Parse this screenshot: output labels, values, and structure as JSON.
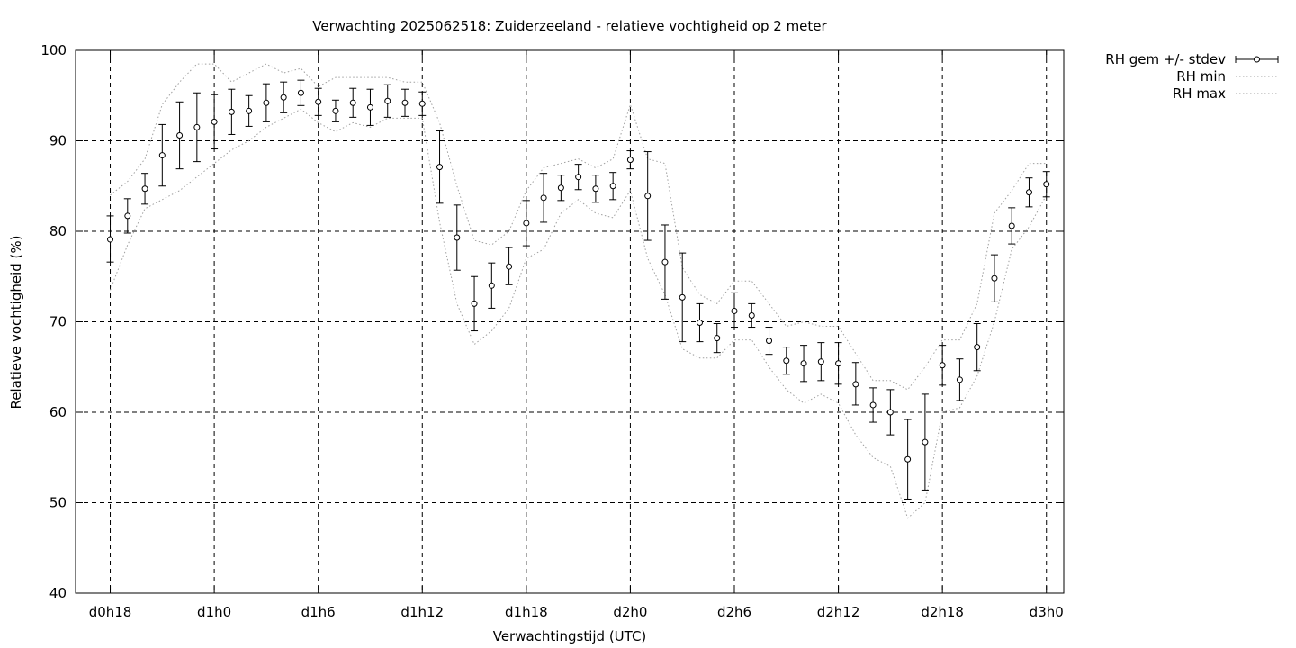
{
  "chart_data": {
    "type": "scatter",
    "title": "Verwachting 2025062518: Zuiderzeeland - relatieve vochtigheid op 2 meter",
    "xlabel": "Verwachtingstijd (UTC)",
    "ylabel": "Relatieve vochtigheid (%)",
    "xlim": [
      -2,
      55
    ],
    "ylim": [
      40,
      100
    ],
    "y_ticks": [
      40,
      50,
      60,
      70,
      80,
      90,
      100
    ],
    "x_ticks": [
      {
        "x": 0,
        "label": "d0h18"
      },
      {
        "x": 6,
        "label": "d1h0"
      },
      {
        "x": 12,
        "label": "d1h6"
      },
      {
        "x": 18,
        "label": "d1h12"
      },
      {
        "x": 24,
        "label": "d1h18"
      },
      {
        "x": 30,
        "label": "d2h0"
      },
      {
        "x": 36,
        "label": "d2h6"
      },
      {
        "x": 42,
        "label": "d2h12"
      },
      {
        "x": 48,
        "label": "d2h18"
      },
      {
        "x": 54,
        "label": "d3h0"
      }
    ],
    "grid": true,
    "legend_position": "outside-top-right",
    "series": [
      {
        "name": "RH gem +/- stdev",
        "style": "errorbars",
        "x": [
          0,
          1,
          2,
          3,
          4,
          5,
          6,
          7,
          8,
          9,
          10,
          11,
          12,
          13,
          14,
          15,
          16,
          17,
          18,
          19,
          20,
          21,
          22,
          23,
          24,
          25,
          26,
          27,
          28,
          29,
          30,
          31,
          32,
          33,
          34,
          35,
          36,
          37,
          38,
          39,
          40,
          41,
          42,
          43,
          44,
          45,
          46,
          47,
          48,
          49,
          50,
          51,
          52,
          53,
          54
        ],
        "mean": [
          79.1,
          81.7,
          84.7,
          88.4,
          90.6,
          91.5,
          92.1,
          93.2,
          93.3,
          94.2,
          94.8,
          95.3,
          94.3,
          93.3,
          94.2,
          93.7,
          94.4,
          94.2,
          94.1,
          87.1,
          79.3,
          72.0,
          74.0,
          76.1,
          80.9,
          83.7,
          84.8,
          86.0,
          84.7,
          85.0,
          87.9,
          83.9,
          76.6,
          72.7,
          69.9,
          68.2,
          71.2,
          70.7,
          67.9,
          65.7,
          65.4,
          65.6,
          65.4,
          63.1,
          60.8,
          60.0,
          54.8,
          56.7,
          65.2,
          63.6,
          67.2,
          74.8,
          80.6,
          84.3,
          85.2
        ],
        "lower": [
          76.6,
          79.8,
          83.0,
          85.0,
          86.9,
          87.7,
          89.1,
          90.7,
          91.6,
          92.1,
          93.1,
          93.9,
          92.8,
          92.1,
          92.6,
          91.7,
          92.6,
          92.7,
          92.8,
          83.1,
          75.7,
          69.0,
          71.5,
          74.1,
          78.4,
          81.0,
          83.4,
          84.6,
          83.2,
          83.5,
          86.9,
          79.0,
          72.5,
          67.8,
          67.8,
          66.6,
          69.4,
          69.4,
          66.4,
          64.2,
          63.4,
          63.5,
          63.1,
          60.8,
          58.9,
          57.5,
          50.4,
          51.4,
          63.0,
          61.3,
          64.6,
          72.2,
          78.6,
          82.7,
          83.8
        ],
        "upper": [
          81.7,
          83.6,
          86.4,
          91.8,
          94.3,
          95.3,
          95.1,
          95.7,
          95.0,
          96.3,
          96.5,
          96.7,
          95.8,
          94.5,
          95.8,
          95.7,
          96.2,
          95.7,
          95.4,
          91.1,
          82.9,
          75.0,
          76.5,
          78.2,
          83.4,
          86.4,
          86.2,
          87.4,
          86.2,
          86.5,
          88.9,
          88.8,
          80.7,
          77.6,
          72.0,
          69.8,
          73.2,
          72.0,
          69.4,
          67.2,
          67.4,
          67.7,
          67.7,
          65.5,
          62.7,
          62.5,
          59.2,
          62.0,
          67.4,
          65.9,
          69.8,
          77.4,
          82.6,
          85.9,
          86.6
        ]
      },
      {
        "name": "RH min",
        "style": "dotted",
        "x": [
          0,
          1,
          2,
          3,
          4,
          5,
          6,
          7,
          8,
          9,
          10,
          11,
          12,
          13,
          14,
          15,
          16,
          17,
          18,
          19,
          20,
          21,
          22,
          23,
          24,
          25,
          26,
          27,
          28,
          29,
          30,
          31,
          32,
          33,
          34,
          35,
          36,
          37,
          38,
          39,
          40,
          41,
          42,
          43,
          44,
          45,
          46,
          47,
          48,
          49,
          50,
          51,
          52,
          53,
          54
        ],
        "values": [
          73.5,
          78.5,
          82.5,
          83.5,
          84.5,
          86,
          87.5,
          89,
          90,
          91.5,
          92.5,
          93.5,
          92,
          91,
          92,
          91.5,
          92.5,
          92.5,
          92.5,
          81,
          72,
          67.5,
          69,
          71.5,
          77,
          78,
          82,
          83.5,
          82,
          81.5,
          84.5,
          77,
          73,
          67,
          66,
          66,
          68,
          68,
          65,
          62.5,
          61,
          62,
          61,
          57.5,
          55,
          54,
          48.3,
          50,
          60,
          60.5,
          64,
          70,
          78,
          80.5,
          84
        ]
      },
      {
        "name": "RH max",
        "style": "dotted",
        "x": [
          0,
          1,
          2,
          3,
          4,
          5,
          6,
          7,
          8,
          9,
          10,
          11,
          12,
          13,
          14,
          15,
          16,
          17,
          18,
          19,
          20,
          21,
          22,
          23,
          24,
          25,
          26,
          27,
          28,
          29,
          30,
          31,
          32,
          33,
          34,
          35,
          36,
          37,
          38,
          39,
          40,
          41,
          42,
          43,
          44,
          45,
          46,
          47,
          48,
          49,
          50,
          51,
          52,
          53,
          54
        ],
        "values": [
          84,
          85.5,
          88,
          94,
          96.5,
          98.5,
          98.5,
          96.5,
          97.5,
          98.5,
          97.5,
          98,
          96,
          97,
          97,
          97,
          97,
          96.5,
          96.5,
          92,
          85,
          79,
          78.5,
          80,
          84.5,
          87,
          87.5,
          88,
          87,
          88,
          94,
          88,
          87.5,
          76,
          73,
          72,
          74.5,
          74.5,
          72,
          69.5,
          70,
          69.5,
          69.5,
          66.5,
          63.5,
          63.5,
          62.5,
          65,
          68,
          68,
          72,
          82,
          84.5,
          87.5,
          87.5
        ]
      }
    ]
  }
}
